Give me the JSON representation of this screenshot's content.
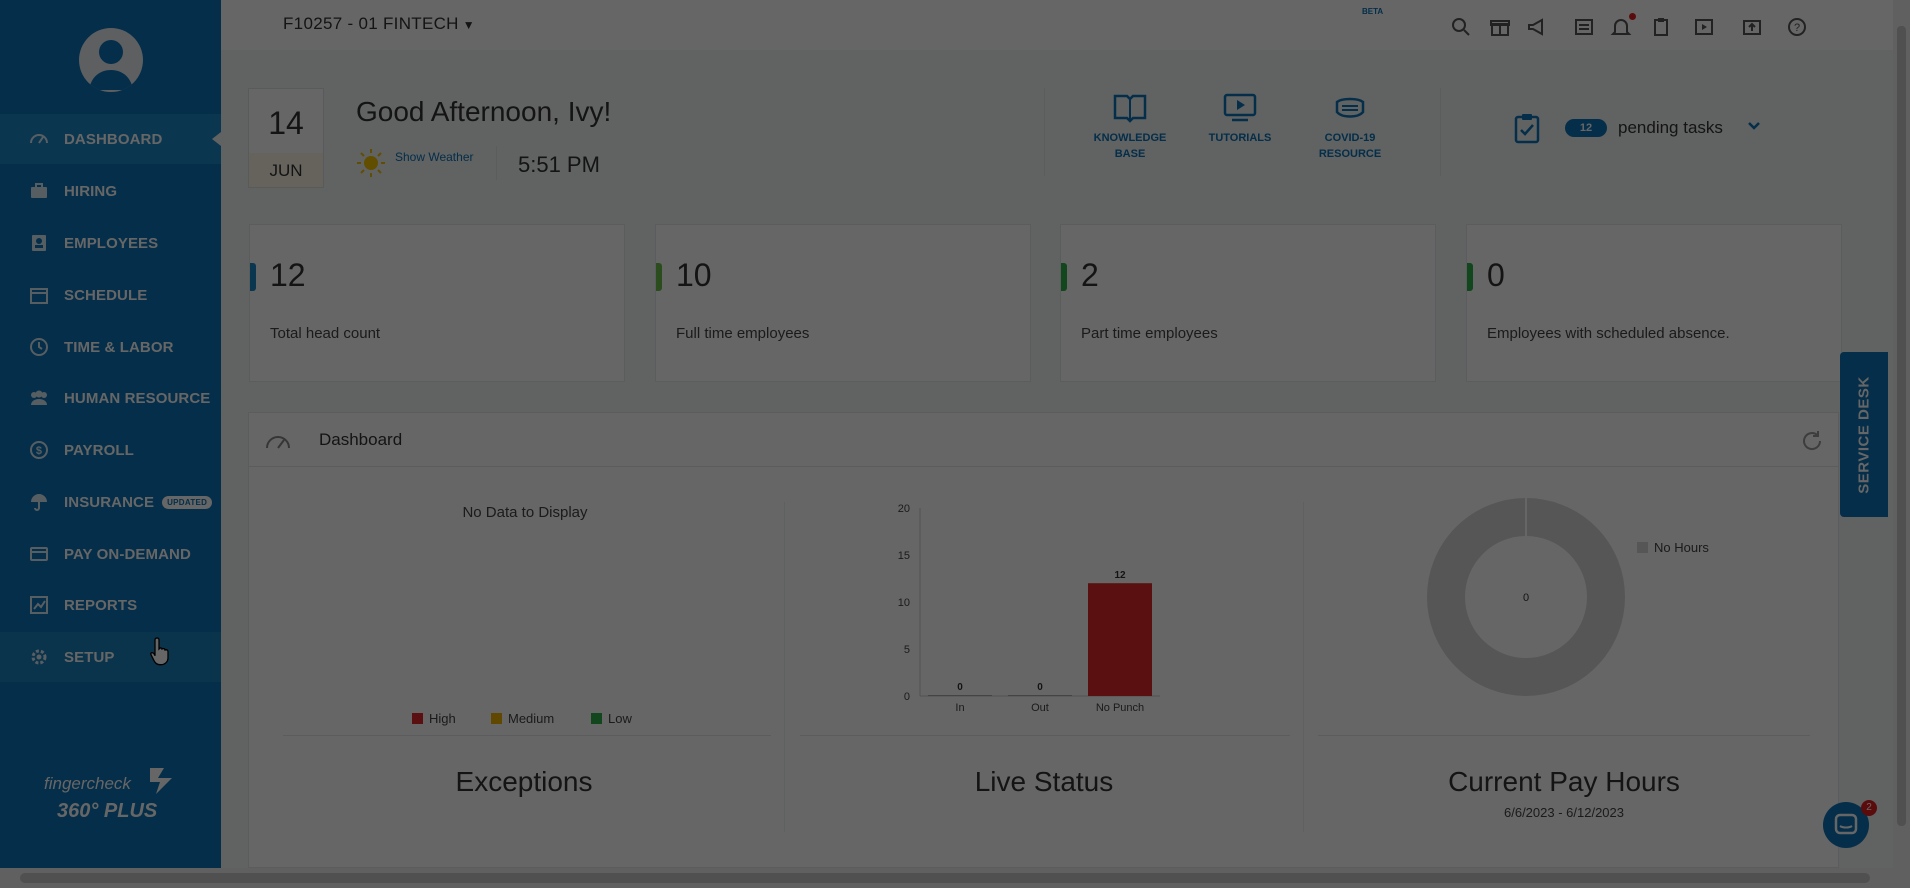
{
  "topbar": {
    "company": "F10257 - 01 FINTECH",
    "beta_label": "BETA",
    "icons": [
      "search-icon",
      "gift-icon",
      "megaphone-icon",
      "news-icon",
      "bell-icon",
      "clipboard-icon",
      "video-icon",
      "upload-icon",
      "help-icon"
    ]
  },
  "sidebar": {
    "items": [
      {
        "label": "DASHBOARD",
        "icon": "gauge-icon",
        "active": true
      },
      {
        "label": "HIRING",
        "icon": "briefcase-icon"
      },
      {
        "label": "EMPLOYEES",
        "icon": "person-badge-icon"
      },
      {
        "label": "SCHEDULE",
        "icon": "calendar-icon"
      },
      {
        "label": "TIME & LABOR",
        "icon": "clock-icon"
      },
      {
        "label": "HUMAN RESOURCE",
        "icon": "people-icon"
      },
      {
        "label": "PAYROLL",
        "icon": "dollar-icon"
      },
      {
        "label": "INSURANCE",
        "icon": "umbrella-icon",
        "badge": "UPDATED"
      },
      {
        "label": "PAY ON-DEMAND",
        "icon": "card-icon"
      },
      {
        "label": "REPORTS",
        "icon": "chart-icon"
      },
      {
        "label": "SETUP",
        "icon": "gear-icon"
      }
    ],
    "brand_line1": "fingercheck",
    "brand_line2": "360° PLUS"
  },
  "header": {
    "date_day": "14",
    "date_month": "JUN",
    "greeting": "Good Afternoon, Ivy!",
    "show_weather": "Show Weather",
    "time": "5:51 PM",
    "quick_links": [
      {
        "line1": "KNOWLEDGE",
        "line2": "BASE",
        "icon": "book-icon"
      },
      {
        "line1": "TUTORIALS",
        "line2": "",
        "icon": "video-icon"
      },
      {
        "line1": "COVID-19",
        "line2": "RESOURCE",
        "icon": "mask-icon"
      }
    ],
    "pending_count": "12",
    "pending_label": "pending tasks"
  },
  "stats": [
    {
      "value": "12",
      "label": "Total head count",
      "color": "#1d88c8"
    },
    {
      "value": "10",
      "label": "Full time employees",
      "color": "#6cc04a"
    },
    {
      "value": "2",
      "label": "Part time employees",
      "color": "#2fae4a"
    },
    {
      "value": "0",
      "label": "Employees with scheduled absence.",
      "color": "#2fae4a"
    }
  ],
  "dashboard": {
    "title": "Dashboard",
    "exceptions": {
      "title": "Exceptions",
      "no_data": "No Data to Display",
      "legend": [
        {
          "label": "High",
          "color": "#e02a2a"
        },
        {
          "label": "Medium",
          "color": "#f0b400"
        },
        {
          "label": "Low",
          "color": "#2fae4a"
        }
      ]
    },
    "live_status": {
      "title": "Live Status"
    },
    "pay_hours": {
      "title": "Current Pay Hours",
      "range": "6/6/2023 - 6/12/2023",
      "legend": "No Hours",
      "center_value": "0"
    }
  },
  "chart_data": {
    "type": "bar",
    "categories": [
      "In",
      "Out",
      "No Punch"
    ],
    "values": [
      0,
      0,
      12
    ],
    "colors": [
      "#aaaaaa",
      "#aaaaaa",
      "#e02a2a"
    ],
    "yticks": [
      "0",
      "5",
      "10",
      "15",
      "20"
    ],
    "ylim": [
      0,
      20
    ],
    "title": "",
    "xlabel": "",
    "ylabel": ""
  },
  "service_desk": "SERVICE DESK",
  "chat_badge": "2"
}
